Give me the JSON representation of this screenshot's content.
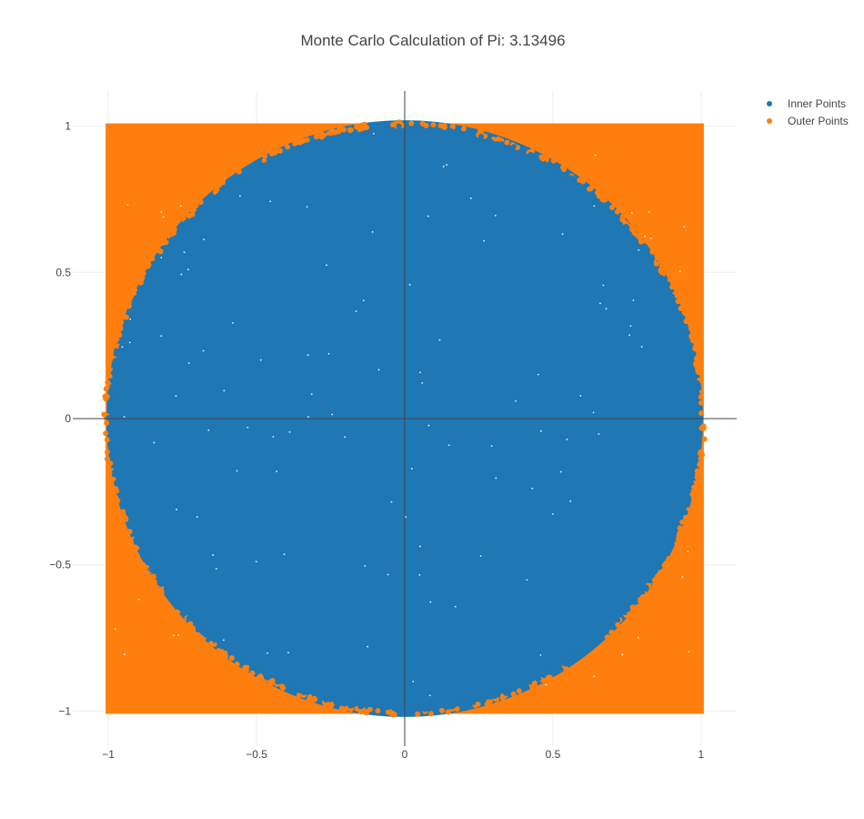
{
  "chart_data": {
    "type": "scatter",
    "title": "Monte Carlo Calculation of Pi: 3.13496",
    "xlabel": "",
    "ylabel": "",
    "xlim": [
      -1.12,
      1.12
    ],
    "ylim": [
      -1.12,
      1.12
    ],
    "x_ticks": [
      -1,
      -0.5,
      0,
      0.5,
      1
    ],
    "y_ticks": [
      -1,
      -0.5,
      0,
      0.5,
      1
    ],
    "x_tick_labels": [
      "−1",
      "−0.5",
      "0",
      "0.5",
      "1"
    ],
    "y_tick_labels": [
      "−1",
      "−0.5",
      "0",
      "0.5",
      "1"
    ],
    "grid": true,
    "zero_lines": true,
    "legend_position": "top-right",
    "series": [
      {
        "name": "Inner Points",
        "color": "#1f77b4",
        "region": "x^2 + y^2 <= 1",
        "domain": [
          [
            -1,
            1
          ],
          [
            -1,
            1
          ]
        ]
      },
      {
        "name": "Outer Points",
        "color": "#ff7f0e",
        "region": "x^2 + y^2 > 1",
        "domain": [
          [
            -1,
            1
          ],
          [
            -1,
            1
          ]
        ]
      }
    ]
  }
}
